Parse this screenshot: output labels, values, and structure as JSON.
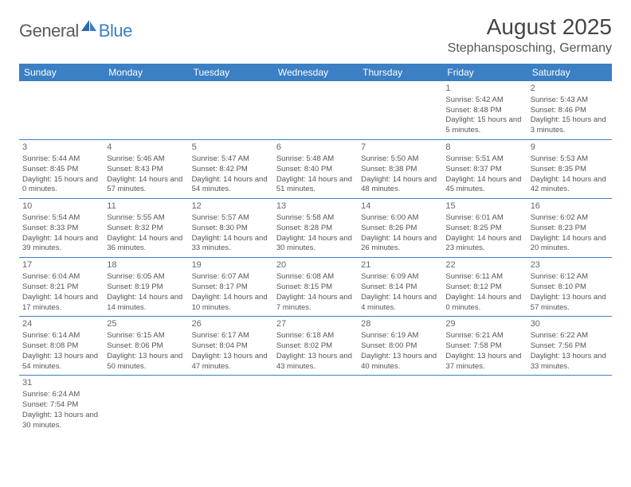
{
  "logo": {
    "text1": "General",
    "text2": "Blue"
  },
  "title": "August 2025",
  "location": "Stephansposching, Germany",
  "header_bg": "#3b7fc4",
  "days": [
    "Sunday",
    "Monday",
    "Tuesday",
    "Wednesday",
    "Thursday",
    "Friday",
    "Saturday"
  ],
  "weeks": [
    [
      null,
      null,
      null,
      null,
      null,
      {
        "n": "1",
        "sr": "Sunrise: 5:42 AM",
        "ss": "Sunset: 8:48 PM",
        "dl": "Daylight: 15 hours and 5 minutes."
      },
      {
        "n": "2",
        "sr": "Sunrise: 5:43 AM",
        "ss": "Sunset: 8:46 PM",
        "dl": "Daylight: 15 hours and 3 minutes."
      }
    ],
    [
      {
        "n": "3",
        "sr": "Sunrise: 5:44 AM",
        "ss": "Sunset: 8:45 PM",
        "dl": "Daylight: 15 hours and 0 minutes."
      },
      {
        "n": "4",
        "sr": "Sunrise: 5:46 AM",
        "ss": "Sunset: 8:43 PM",
        "dl": "Daylight: 14 hours and 57 minutes."
      },
      {
        "n": "5",
        "sr": "Sunrise: 5:47 AM",
        "ss": "Sunset: 8:42 PM",
        "dl": "Daylight: 14 hours and 54 minutes."
      },
      {
        "n": "6",
        "sr": "Sunrise: 5:48 AM",
        "ss": "Sunset: 8:40 PM",
        "dl": "Daylight: 14 hours and 51 minutes."
      },
      {
        "n": "7",
        "sr": "Sunrise: 5:50 AM",
        "ss": "Sunset: 8:38 PM",
        "dl": "Daylight: 14 hours and 48 minutes."
      },
      {
        "n": "8",
        "sr": "Sunrise: 5:51 AM",
        "ss": "Sunset: 8:37 PM",
        "dl": "Daylight: 14 hours and 45 minutes."
      },
      {
        "n": "9",
        "sr": "Sunrise: 5:53 AM",
        "ss": "Sunset: 8:35 PM",
        "dl": "Daylight: 14 hours and 42 minutes."
      }
    ],
    [
      {
        "n": "10",
        "sr": "Sunrise: 5:54 AM",
        "ss": "Sunset: 8:33 PM",
        "dl": "Daylight: 14 hours and 39 minutes."
      },
      {
        "n": "11",
        "sr": "Sunrise: 5:55 AM",
        "ss": "Sunset: 8:32 PM",
        "dl": "Daylight: 14 hours and 36 minutes."
      },
      {
        "n": "12",
        "sr": "Sunrise: 5:57 AM",
        "ss": "Sunset: 8:30 PM",
        "dl": "Daylight: 14 hours and 33 minutes."
      },
      {
        "n": "13",
        "sr": "Sunrise: 5:58 AM",
        "ss": "Sunset: 8:28 PM",
        "dl": "Daylight: 14 hours and 30 minutes."
      },
      {
        "n": "14",
        "sr": "Sunrise: 6:00 AM",
        "ss": "Sunset: 8:26 PM",
        "dl": "Daylight: 14 hours and 26 minutes."
      },
      {
        "n": "15",
        "sr": "Sunrise: 6:01 AM",
        "ss": "Sunset: 8:25 PM",
        "dl": "Daylight: 14 hours and 23 minutes."
      },
      {
        "n": "16",
        "sr": "Sunrise: 6:02 AM",
        "ss": "Sunset: 8:23 PM",
        "dl": "Daylight: 14 hours and 20 minutes."
      }
    ],
    [
      {
        "n": "17",
        "sr": "Sunrise: 6:04 AM",
        "ss": "Sunset: 8:21 PM",
        "dl": "Daylight: 14 hours and 17 minutes."
      },
      {
        "n": "18",
        "sr": "Sunrise: 6:05 AM",
        "ss": "Sunset: 8:19 PM",
        "dl": "Daylight: 14 hours and 14 minutes."
      },
      {
        "n": "19",
        "sr": "Sunrise: 6:07 AM",
        "ss": "Sunset: 8:17 PM",
        "dl": "Daylight: 14 hours and 10 minutes."
      },
      {
        "n": "20",
        "sr": "Sunrise: 6:08 AM",
        "ss": "Sunset: 8:15 PM",
        "dl": "Daylight: 14 hours and 7 minutes."
      },
      {
        "n": "21",
        "sr": "Sunrise: 6:09 AM",
        "ss": "Sunset: 8:14 PM",
        "dl": "Daylight: 14 hours and 4 minutes."
      },
      {
        "n": "22",
        "sr": "Sunrise: 6:11 AM",
        "ss": "Sunset: 8:12 PM",
        "dl": "Daylight: 14 hours and 0 minutes."
      },
      {
        "n": "23",
        "sr": "Sunrise: 6:12 AM",
        "ss": "Sunset: 8:10 PM",
        "dl": "Daylight: 13 hours and 57 minutes."
      }
    ],
    [
      {
        "n": "24",
        "sr": "Sunrise: 6:14 AM",
        "ss": "Sunset: 8:08 PM",
        "dl": "Daylight: 13 hours and 54 minutes."
      },
      {
        "n": "25",
        "sr": "Sunrise: 6:15 AM",
        "ss": "Sunset: 8:06 PM",
        "dl": "Daylight: 13 hours and 50 minutes."
      },
      {
        "n": "26",
        "sr": "Sunrise: 6:17 AM",
        "ss": "Sunset: 8:04 PM",
        "dl": "Daylight: 13 hours and 47 minutes."
      },
      {
        "n": "27",
        "sr": "Sunrise: 6:18 AM",
        "ss": "Sunset: 8:02 PM",
        "dl": "Daylight: 13 hours and 43 minutes."
      },
      {
        "n": "28",
        "sr": "Sunrise: 6:19 AM",
        "ss": "Sunset: 8:00 PM",
        "dl": "Daylight: 13 hours and 40 minutes."
      },
      {
        "n": "29",
        "sr": "Sunrise: 6:21 AM",
        "ss": "Sunset: 7:58 PM",
        "dl": "Daylight: 13 hours and 37 minutes."
      },
      {
        "n": "30",
        "sr": "Sunrise: 6:22 AM",
        "ss": "Sunset: 7:56 PM",
        "dl": "Daylight: 13 hours and 33 minutes."
      }
    ],
    [
      {
        "n": "31",
        "sr": "Sunrise: 6:24 AM",
        "ss": "Sunset: 7:54 PM",
        "dl": "Daylight: 13 hours and 30 minutes."
      },
      null,
      null,
      null,
      null,
      null,
      null
    ]
  ]
}
